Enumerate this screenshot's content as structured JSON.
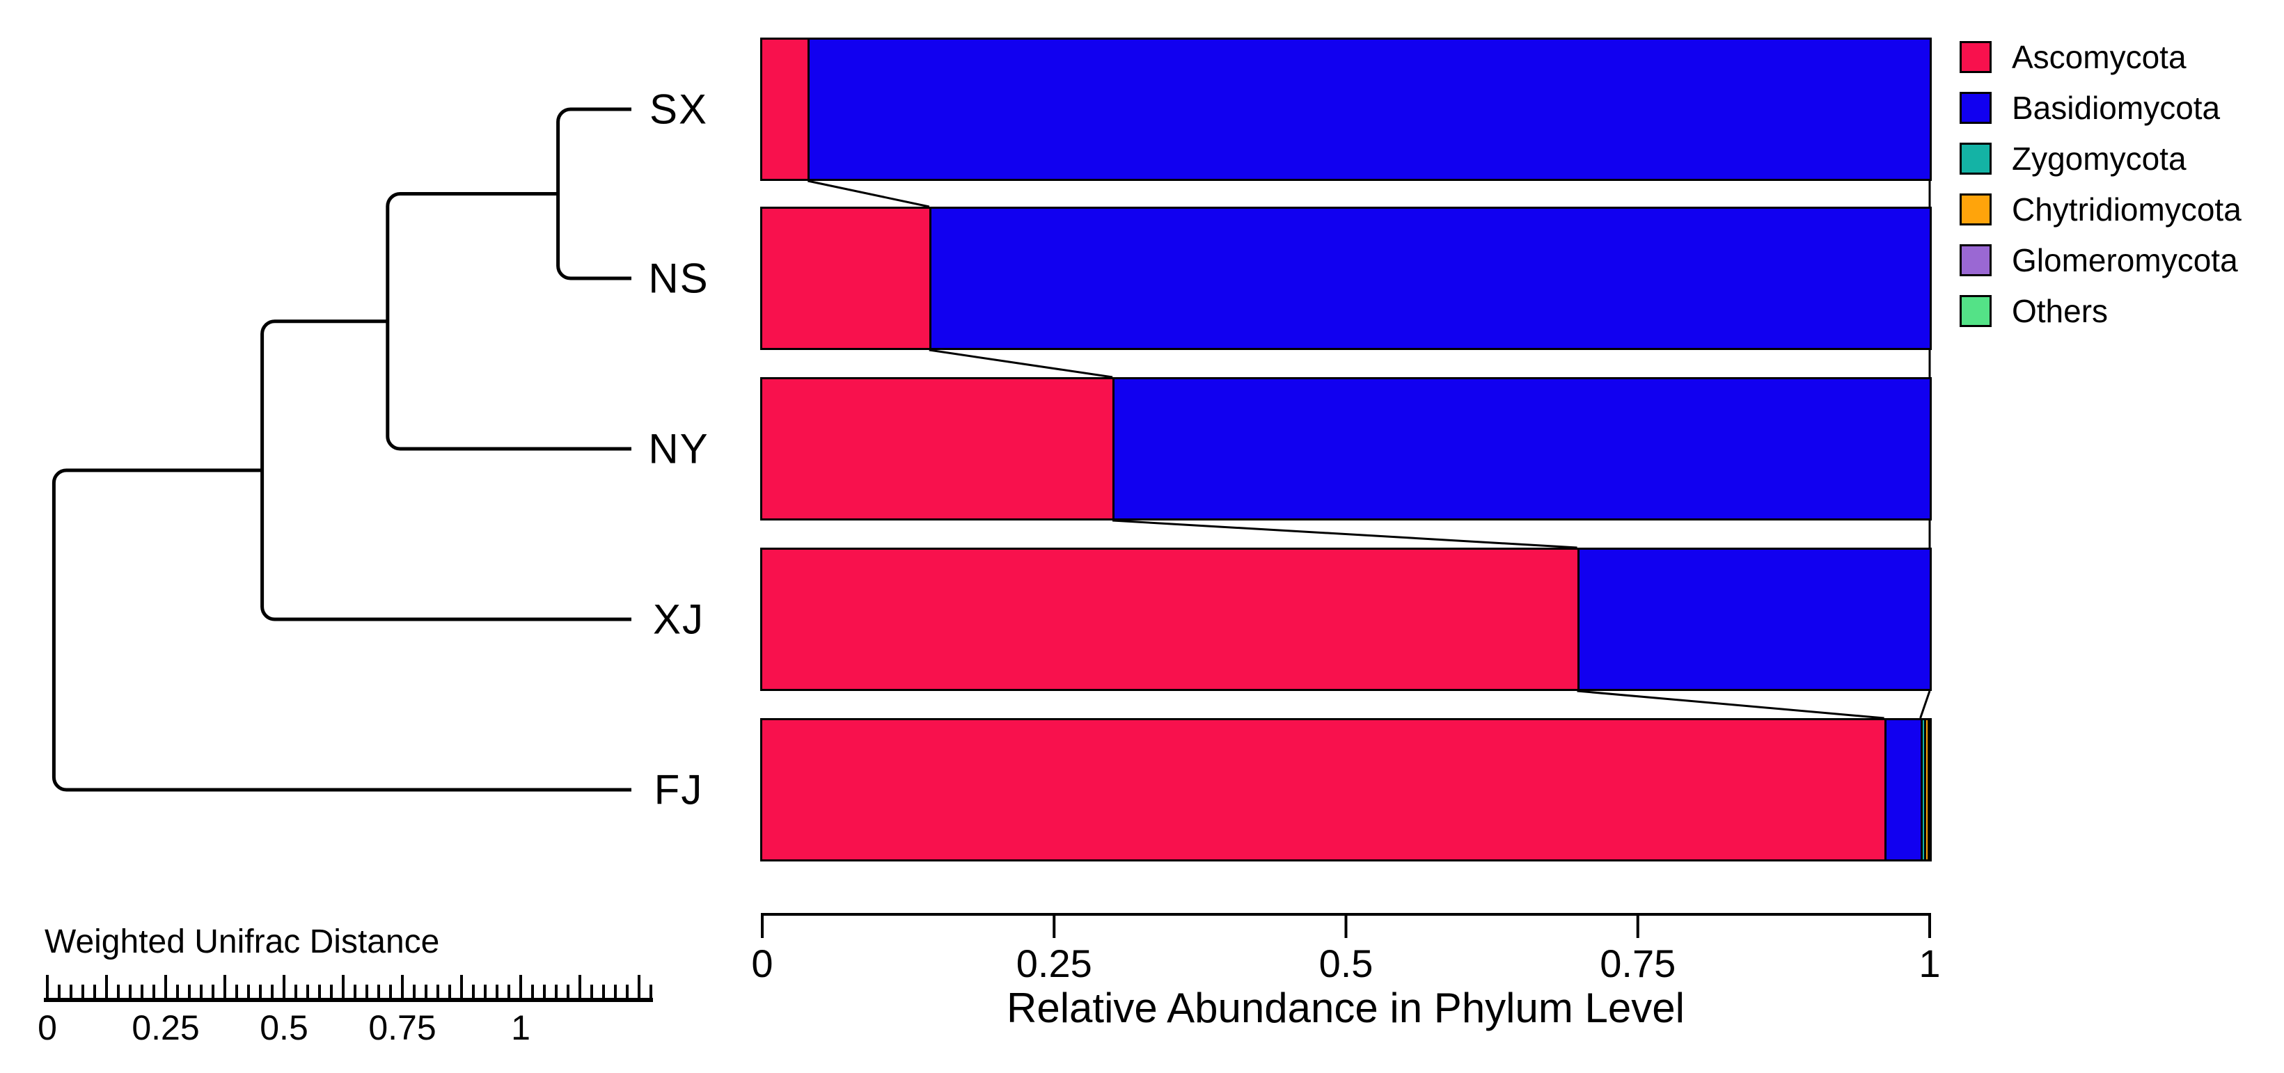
{
  "dendrogram": {
    "axis_title": "Weighted Unifrac Distance",
    "tick_labels": [
      "0",
      "0.25",
      "0.5",
      "0.75",
      "1"
    ],
    "tick_values": [
      0,
      0.25,
      0.5,
      0.75,
      1
    ],
    "minor_tick_step": 0.025,
    "major_tick_step": 0.125,
    "scale_max": 1.275,
    "leaf_order": [
      "SX",
      "NS",
      "NY",
      "XJ",
      "FJ"
    ],
    "newick": "((((SX,NS),NY),XJ),FJ)",
    "merges": [
      {
        "a": "SX",
        "b": "NS",
        "height": 0.155
      },
      {
        "a": "SX,NS",
        "b": "NY",
        "height": 0.515
      },
      {
        "a": "SX,NS,NY",
        "b": "XJ",
        "height": 0.78
      },
      {
        "a": "SX,NS,NY,XJ",
        "b": "FJ",
        "height": 1.22
      }
    ]
  },
  "chart_data": {
    "type": "bar",
    "orientation": "horizontal-stacked",
    "title": "",
    "xlabel": "Relative Abundance in Phylum Level",
    "categories": [
      "SX",
      "NS",
      "NY",
      "XJ",
      "FJ"
    ],
    "series": [
      {
        "name": "Ascomycota",
        "color": "#F8114D",
        "values": [
          0.039,
          0.143,
          0.3,
          0.698,
          0.961
        ]
      },
      {
        "name": "Basidiomycota",
        "color": "#1100F0",
        "values": [
          0.961,
          0.857,
          0.7,
          0.302,
          0.031
        ]
      },
      {
        "name": "Zygomycota",
        "color": "#14B3A5",
        "values": [
          0,
          0,
          0,
          0,
          0.003
        ]
      },
      {
        "name": "Chytridiomycota",
        "color": "#FFA40B",
        "values": [
          0,
          0,
          0,
          0,
          0.003
        ]
      },
      {
        "name": "Glomeromycota",
        "color": "#9A68D3",
        "values": [
          0,
          0,
          0,
          0,
          0.001
        ]
      },
      {
        "name": "Others",
        "color": "#54E287",
        "values": [
          0,
          0,
          0,
          0,
          0.001
        ]
      }
    ],
    "x_ticks": [
      "0",
      "0.25",
      "0.5",
      "0.75",
      "1"
    ],
    "x_tick_values": [
      0,
      0.25,
      0.5,
      0.75,
      1
    ],
    "xlim": [
      0,
      1
    ],
    "grid": false,
    "legend_position": "top-right",
    "line_color": "#000000",
    "background": "#FFFFFF"
  }
}
